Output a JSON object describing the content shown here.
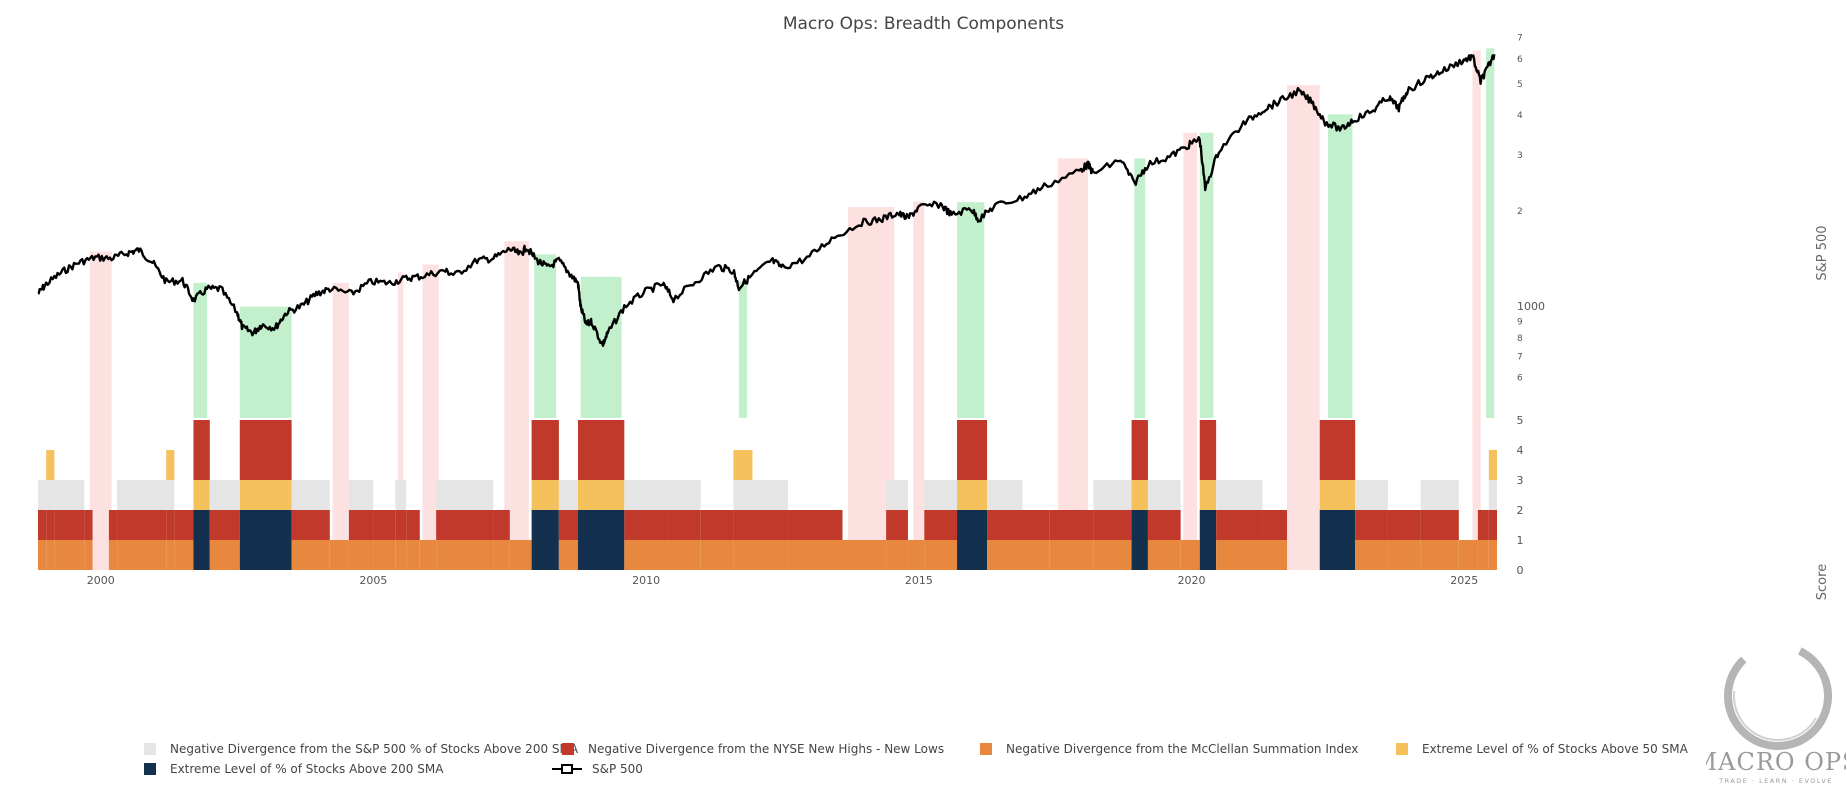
{
  "chart_data": {
    "type": "line",
    "title": "Macro Ops: Breadth Components",
    "yaxis_right_price": {
      "label": "S&P 500",
      "scale": "log",
      "range": [
        550,
        7000
      ],
      "tick_labels": [
        "6",
        "7",
        "8",
        "9",
        "1000",
        "2",
        "3",
        "4",
        "5",
        "6",
        "7"
      ],
      "tick_values": [
        600,
        700,
        800,
        900,
        1000,
        2000,
        3000,
        4000,
        5000,
        6000,
        7000
      ]
    },
    "yaxis_right_score": {
      "label": "Score",
      "range": [
        0,
        5
      ],
      "tick_labels": [
        "0",
        "1",
        "2",
        "3",
        "4",
        "5"
      ]
    },
    "xaxis": {
      "range": [
        1998.85,
        2025.6
      ],
      "tick_labels": [
        "2000",
        "2005",
        "2010",
        "2015",
        "2020",
        "2025"
      ],
      "tick_values": [
        2000,
        2005,
        2010,
        2015,
        2020,
        2025
      ]
    },
    "sp500": {
      "name": "S&P 500",
      "color": "#000000",
      "points": [
        [
          1998.85,
          1100
        ],
        [
          1999.0,
          1180
        ],
        [
          1999.3,
          1290
        ],
        [
          1999.6,
          1380
        ],
        [
          1999.9,
          1430
        ],
        [
          2000.2,
          1420
        ],
        [
          2000.5,
          1480
        ],
        [
          2000.7,
          1510
        ],
        [
          2000.95,
          1380
        ],
        [
          2001.2,
          1200
        ],
        [
          2001.5,
          1210
        ],
        [
          2001.7,
          1050
        ],
        [
          2001.95,
          1140
        ],
        [
          2002.2,
          1140
        ],
        [
          2002.5,
          960
        ],
        [
          2002.6,
          860
        ],
        [
          2002.8,
          830
        ],
        [
          2002.95,
          880
        ],
        [
          2003.2,
          860
        ],
        [
          2003.4,
          960
        ],
        [
          2003.7,
          1010
        ],
        [
          2003.95,
          1100
        ],
        [
          2004.2,
          1140
        ],
        [
          2004.6,
          1100
        ],
        [
          2004.95,
          1200
        ],
        [
          2005.3,
          1190
        ],
        [
          2005.6,
          1230
        ],
        [
          2005.9,
          1250
        ],
        [
          2006.3,
          1300
        ],
        [
          2006.5,
          1260
        ],
        [
          2006.9,
          1400
        ],
        [
          2007.2,
          1420
        ],
        [
          2007.5,
          1520
        ],
        [
          2007.7,
          1460
        ],
        [
          2007.8,
          1540
        ],
        [
          2008.0,
          1400
        ],
        [
          2008.2,
          1330
        ],
        [
          2008.4,
          1400
        ],
        [
          2008.6,
          1270
        ],
        [
          2008.75,
          1190
        ],
        [
          2008.8,
          1000
        ],
        [
          2008.9,
          880
        ],
        [
          2009.0,
          900
        ],
        [
          2009.2,
          760
        ],
        [
          2009.3,
          830
        ],
        [
          2009.6,
          1000
        ],
        [
          2009.95,
          1110
        ],
        [
          2010.3,
          1180
        ],
        [
          2010.5,
          1060
        ],
        [
          2010.9,
          1200
        ],
        [
          2011.3,
          1340
        ],
        [
          2011.6,
          1300
        ],
        [
          2011.7,
          1150
        ],
        [
          2011.95,
          1260
        ],
        [
          2012.3,
          1400
        ],
        [
          2012.5,
          1330
        ],
        [
          2012.95,
          1420
        ],
        [
          2013.4,
          1640
        ],
        [
          2013.95,
          1840
        ],
        [
          2014.3,
          1880
        ],
        [
          2014.6,
          1970
        ],
        [
          2014.8,
          1900
        ],
        [
          2015.0,
          2050
        ],
        [
          2015.4,
          2100
        ],
        [
          2015.6,
          1940
        ],
        [
          2015.95,
          2040
        ],
        [
          2016.1,
          1880
        ],
        [
          2016.4,
          2080
        ],
        [
          2016.9,
          2200
        ],
        [
          2017.3,
          2390
        ],
        [
          2017.95,
          2680
        ],
        [
          2018.1,
          2800
        ],
        [
          2018.2,
          2620
        ],
        [
          2018.7,
          2900
        ],
        [
          2018.95,
          2440
        ],
        [
          2019.2,
          2800
        ],
        [
          2019.6,
          2960
        ],
        [
          2019.95,
          3220
        ],
        [
          2020.15,
          3370
        ],
        [
          2020.25,
          2350
        ],
        [
          2020.5,
          3100
        ],
        [
          2020.95,
          3750
        ],
        [
          2021.3,
          4150
        ],
        [
          2021.6,
          4400
        ],
        [
          2021.95,
          4750
        ],
        [
          2022.2,
          4400
        ],
        [
          2022.45,
          3800
        ],
        [
          2022.75,
          3600
        ],
        [
          2022.95,
          3850
        ],
        [
          2023.3,
          4100
        ],
        [
          2023.6,
          4550
        ],
        [
          2023.8,
          4200
        ],
        [
          2023.95,
          4750
        ],
        [
          2024.3,
          5200
        ],
        [
          2024.6,
          5500
        ],
        [
          2024.95,
          5900
        ],
        [
          2025.15,
          6100
        ],
        [
          2025.3,
          5100
        ],
        [
          2025.4,
          5500
        ],
        [
          2025.55,
          6200
        ]
      ]
    },
    "highlight_zones": [
      {
        "type": "negative",
        "start": 1999.8,
        "end": 2000.2
      },
      {
        "type": "positive",
        "start": 2001.7,
        "end": 2001.95
      },
      {
        "type": "positive",
        "start": 2002.55,
        "end": 2003.5
      },
      {
        "type": "negative",
        "start": 2004.25,
        "end": 2004.55
      },
      {
        "type": "negative",
        "start": 2005.45,
        "end": 2005.55
      },
      {
        "type": "negative",
        "start": 2005.9,
        "end": 2006.2
      },
      {
        "type": "negative",
        "start": 2007.4,
        "end": 2007.85
      },
      {
        "type": "positive",
        "start": 2007.95,
        "end": 2008.35
      },
      {
        "type": "positive",
        "start": 2008.8,
        "end": 2009.55
      },
      {
        "type": "positive",
        "start": 2011.7,
        "end": 2011.85
      },
      {
        "type": "negative",
        "start": 2013.7,
        "end": 2014.55
      },
      {
        "type": "negative",
        "start": 2014.9,
        "end": 2015.1
      },
      {
        "type": "positive",
        "start": 2015.7,
        "end": 2016.2
      },
      {
        "type": "negative",
        "start": 2017.55,
        "end": 2018.1
      },
      {
        "type": "positive",
        "start": 2018.95,
        "end": 2019.15
      },
      {
        "type": "negative",
        "start": 2019.85,
        "end": 2020.1
      },
      {
        "type": "positive",
        "start": 2020.15,
        "end": 2020.4
      },
      {
        "type": "negative",
        "start": 2021.75,
        "end": 2022.35
      },
      {
        "type": "positive",
        "start": 2022.5,
        "end": 2022.95
      },
      {
        "type": "negative",
        "start": 2025.15,
        "end": 2025.3
      },
      {
        "type": "positive",
        "start": 2025.4,
        "end": 2025.55
      }
    ],
    "score_segments": [
      {
        "start": 1998.85,
        "end": 1999.0,
        "score": 3
      },
      {
        "start": 1999.0,
        "end": 1999.15,
        "score": 4
      },
      {
        "start": 1999.15,
        "end": 1999.7,
        "score": 3
      },
      {
        "start": 1999.7,
        "end": 1999.85,
        "score": 2
      },
      {
        "start": 1999.85,
        "end": 2000.15,
        "score": 0
      },
      {
        "start": 2000.15,
        "end": 2000.3,
        "score": 2
      },
      {
        "start": 2000.3,
        "end": 2000.5,
        "score": 3
      },
      {
        "start": 2000.5,
        "end": 2001.2,
        "score": 3
      },
      {
        "start": 2001.2,
        "end": 2001.35,
        "score": 4
      },
      {
        "start": 2001.35,
        "end": 2001.7,
        "score": 2
      },
      {
        "start": 2001.7,
        "end": 2002.0,
        "score": 5
      },
      {
        "start": 2002.0,
        "end": 2002.55,
        "score": 3
      },
      {
        "start": 2002.55,
        "end": 2003.5,
        "score": 5
      },
      {
        "start": 2003.5,
        "end": 2004.2,
        "score": 3
      },
      {
        "start": 2004.2,
        "end": 2004.55,
        "score": 1
      },
      {
        "start": 2004.55,
        "end": 2005.0,
        "score": 3
      },
      {
        "start": 2005.0,
        "end": 2005.4,
        "score": 2
      },
      {
        "start": 2005.4,
        "end": 2005.6,
        "score": 3
      },
      {
        "start": 2005.6,
        "end": 2005.85,
        "score": 2
      },
      {
        "start": 2005.85,
        "end": 2006.15,
        "score": 1
      },
      {
        "start": 2006.15,
        "end": 2007.2,
        "score": 3
      },
      {
        "start": 2007.2,
        "end": 2007.5,
        "score": 2
      },
      {
        "start": 2007.5,
        "end": 2007.9,
        "score": 1
      },
      {
        "start": 2007.9,
        "end": 2008.4,
        "score": 5
      },
      {
        "start": 2008.4,
        "end": 2008.75,
        "score": 3
      },
      {
        "start": 2008.75,
        "end": 2009.6,
        "score": 5
      },
      {
        "start": 2009.6,
        "end": 2010.4,
        "score": 3
      },
      {
        "start": 2010.4,
        "end": 2011.0,
        "score": 3
      },
      {
        "start": 2011.0,
        "end": 2011.6,
        "score": 2
      },
      {
        "start": 2011.6,
        "end": 2011.95,
        "score": 4
      },
      {
        "start": 2011.95,
        "end": 2012.6,
        "score": 3
      },
      {
        "start": 2012.6,
        "end": 2013.6,
        "score": 2
      },
      {
        "start": 2013.6,
        "end": 2014.4,
        "score": 1
      },
      {
        "start": 2014.4,
        "end": 2014.8,
        "score": 3
      },
      {
        "start": 2014.8,
        "end": 2015.1,
        "score": 1
      },
      {
        "start": 2015.1,
        "end": 2015.7,
        "score": 3
      },
      {
        "start": 2015.7,
        "end": 2016.25,
        "score": 5
      },
      {
        "start": 2016.25,
        "end": 2016.9,
        "score": 3
      },
      {
        "start": 2016.9,
        "end": 2017.4,
        "score": 2
      },
      {
        "start": 2017.4,
        "end": 2018.2,
        "score": 2
      },
      {
        "start": 2018.2,
        "end": 2018.9,
        "score": 3
      },
      {
        "start": 2018.9,
        "end": 2019.2,
        "score": 5
      },
      {
        "start": 2019.2,
        "end": 2019.8,
        "score": 3
      },
      {
        "start": 2019.8,
        "end": 2020.15,
        "score": 1
      },
      {
        "start": 2020.15,
        "end": 2020.45,
        "score": 5
      },
      {
        "start": 2020.45,
        "end": 2021.3,
        "score": 3
      },
      {
        "start": 2021.3,
        "end": 2021.75,
        "score": 2
      },
      {
        "start": 2021.75,
        "end": 2022.35,
        "score": 0
      },
      {
        "start": 2022.35,
        "end": 2023.0,
        "score": 5
      },
      {
        "start": 2023.0,
        "end": 2023.6,
        "score": 3
      },
      {
        "start": 2023.6,
        "end": 2024.2,
        "score": 2
      },
      {
        "start": 2024.2,
        "end": 2024.9,
        "score": 3
      },
      {
        "start": 2024.9,
        "end": 2025.25,
        "score": 1
      },
      {
        "start": 2025.25,
        "end": 2025.45,
        "score": 2
      },
      {
        "start": 2025.45,
        "end": 2025.6,
        "score": 4
      }
    ],
    "component_colors": {
      "c1": "#e5e5e5",
      "c2": "#c0392b",
      "c3": "#e8883f",
      "c4": "#f5c15c",
      "c5": "#14304f",
      "positive_zone": "#c2efcc",
      "negative_zone": "#fde0e0"
    },
    "legend": [
      {
        "key": "c1",
        "label": "Negative Divergence from the S&P 500 % of Stocks Above 200 SMA"
      },
      {
        "key": "c2",
        "label": "Negative Divergence from the NYSE New Highs - New Lows"
      },
      {
        "key": "c3",
        "label": "Negative Divergence from the McClellan Summation Index"
      },
      {
        "key": "c4",
        "label": "Extreme Level of % of Stocks Above 50 SMA"
      },
      {
        "key": "c5",
        "label": "Extreme Level of % of Stocks Above 200 SMA"
      },
      {
        "key": "line",
        "label": "S&P 500"
      }
    ]
  },
  "logo": {
    "name": "MACRO OPS",
    "tagline": "TRADE · LEARN · EVOLVE"
  }
}
